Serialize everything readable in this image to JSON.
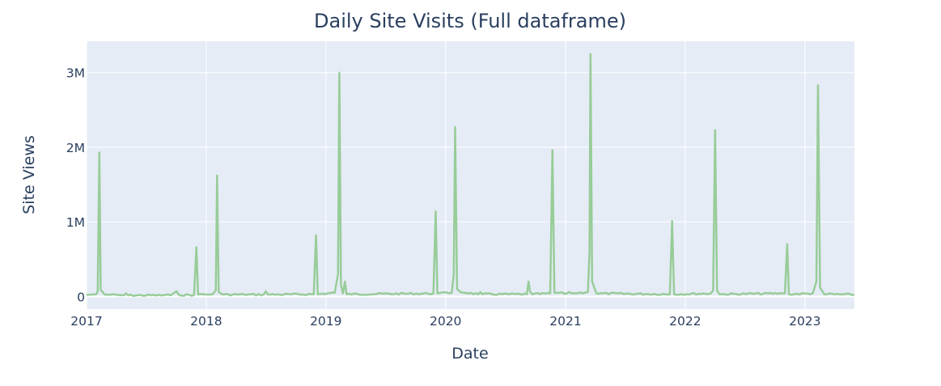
{
  "chart_data": {
    "type": "line",
    "title": "Daily Site Visits (Full dataframe)",
    "xlabel": "Date",
    "ylabel": "Site Views",
    "x_tick_labels": [
      "2017",
      "2018",
      "2019",
      "2020",
      "2021",
      "2022",
      "2023"
    ],
    "y_ticks": [
      0,
      1000000,
      2000000,
      3000000
    ],
    "y_tick_labels": [
      "0",
      "1M",
      "2M",
      "3M"
    ],
    "xlim": [
      "2017-01-01",
      "2023-06-01"
    ],
    "ylim": [
      -170000,
      3420000
    ],
    "grid": true,
    "legend": "none",
    "colors": {
      "background": "#e5ecf6",
      "grid": "#ffffff",
      "line": "#98cc98",
      "text": "#2a3f5f"
    },
    "series": [
      {
        "values": [
          [
            "2017-01-01",
            20000
          ],
          [
            "2017-01-30",
            30000
          ],
          [
            "2017-02-04",
            70000
          ],
          [
            "2017-02-09",
            1930000
          ],
          [
            "2017-02-13",
            90000
          ],
          [
            "2017-02-25",
            25000
          ],
          [
            "2017-04-25",
            15000
          ],
          [
            "2017-05-01",
            40000
          ],
          [
            "2017-05-08",
            15000
          ],
          [
            "2017-09-15",
            15000
          ],
          [
            "2017-10-02",
            70000
          ],
          [
            "2017-10-10",
            20000
          ],
          [
            "2017-11-25",
            20000
          ],
          [
            "2017-12-02",
            660000
          ],
          [
            "2017-12-07",
            25000
          ],
          [
            "2018-01-20",
            30000
          ],
          [
            "2018-01-30",
            80000
          ],
          [
            "2018-02-03",
            1620000
          ],
          [
            "2018-02-08",
            60000
          ],
          [
            "2018-02-20",
            25000
          ],
          [
            "2018-06-25",
            25000
          ],
          [
            "2018-07-02",
            70000
          ],
          [
            "2018-07-08",
            25000
          ],
          [
            "2018-11-25",
            30000
          ],
          [
            "2018-12-02",
            820000
          ],
          [
            "2018-12-07",
            30000
          ],
          [
            "2019-01-28",
            50000
          ],
          [
            "2019-02-07",
            300000
          ],
          [
            "2019-02-11",
            3000000
          ],
          [
            "2019-02-16",
            150000
          ],
          [
            "2019-02-22",
            40000
          ],
          [
            "2019-02-28",
            200000
          ],
          [
            "2019-03-05",
            30000
          ],
          [
            "2019-11-25",
            40000
          ],
          [
            "2019-12-02",
            1140000
          ],
          [
            "2019-12-07",
            40000
          ],
          [
            "2020-01-20",
            50000
          ],
          [
            "2020-01-26",
            300000
          ],
          [
            "2020-01-30",
            2270000
          ],
          [
            "2020-02-05",
            100000
          ],
          [
            "2020-02-15",
            60000
          ],
          [
            "2020-04-10",
            30000
          ],
          [
            "2020-04-16",
            60000
          ],
          [
            "2020-04-22",
            30000
          ],
          [
            "2020-09-05",
            30000
          ],
          [
            "2020-09-10",
            200000
          ],
          [
            "2020-09-15",
            60000
          ],
          [
            "2020-09-22",
            30000
          ],
          [
            "2020-11-15",
            40000
          ],
          [
            "2020-11-22",
            1960000
          ],
          [
            "2020-11-28",
            50000
          ],
          [
            "2021-01-05",
            40000
          ],
          [
            "2021-01-12",
            60000
          ],
          [
            "2021-01-20",
            40000
          ],
          [
            "2021-03-10",
            60000
          ],
          [
            "2021-03-15",
            600000
          ],
          [
            "2021-03-18",
            3250000
          ],
          [
            "2021-03-23",
            200000
          ],
          [
            "2021-04-05",
            40000
          ],
          [
            "2021-11-15",
            30000
          ],
          [
            "2021-11-22",
            1010000
          ],
          [
            "2021-11-28",
            30000
          ],
          [
            "2022-03-20",
            40000
          ],
          [
            "2022-03-27",
            80000
          ],
          [
            "2022-04-02",
            2230000
          ],
          [
            "2022-04-08",
            80000
          ],
          [
            "2022-04-15",
            30000
          ],
          [
            "2022-10-25",
            40000
          ],
          [
            "2022-11-01",
            40000
          ],
          [
            "2022-11-08",
            700000
          ],
          [
            "2022-11-13",
            30000
          ],
          [
            "2023-01-25",
            40000
          ],
          [
            "2023-02-05",
            200000
          ],
          [
            "2023-02-10",
            2830000
          ],
          [
            "2023-02-16",
            120000
          ],
          [
            "2023-03-01",
            30000
          ],
          [
            "2023-06-01",
            25000
          ]
        ]
      }
    ]
  }
}
